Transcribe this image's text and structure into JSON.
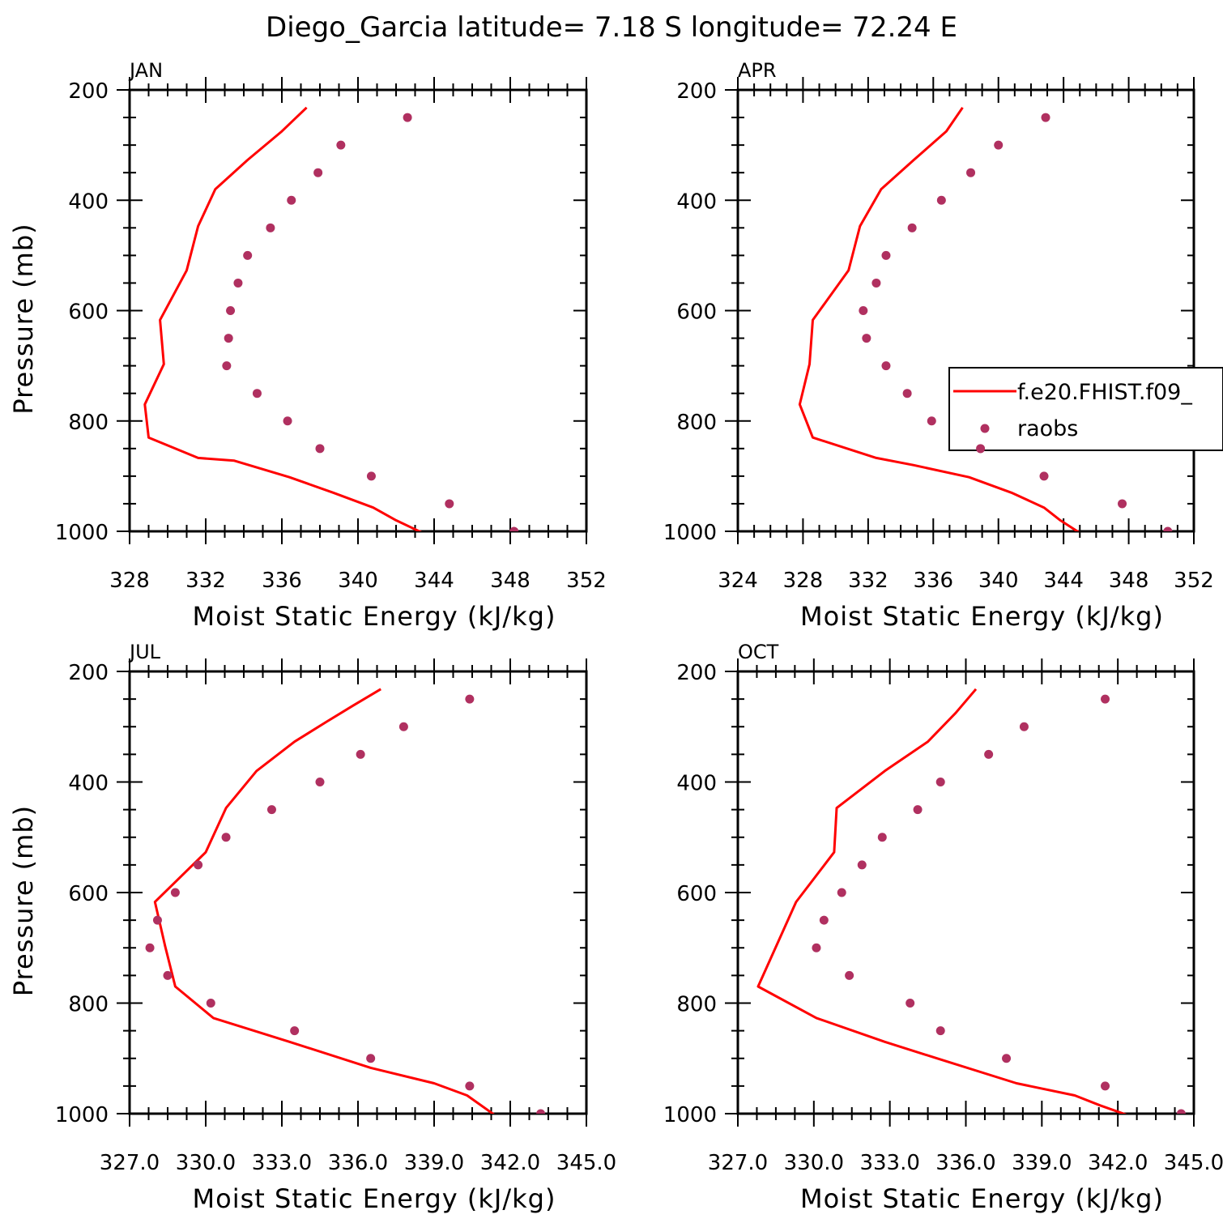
{
  "figure": {
    "title": "Diego_Garcia  latitude= 7.18 S longitude= 72.24 E"
  },
  "colors": {
    "model_line": "#ff0000",
    "obs_marker": "#b03060",
    "axis": "#000000"
  },
  "legend": {
    "placement": "right-middle of APR panel",
    "entries": [
      {
        "label": "f.e20.FHIST.f09_",
        "style": "line"
      },
      {
        "label": "raobs",
        "style": "marker"
      }
    ]
  },
  "chart_data": [
    {
      "panel": "JAN",
      "type": "line+scatter",
      "xlabel": "Moist Static Energy (kJ/kg)",
      "ylabel": "Pressure (mb)",
      "xlim": [
        328,
        352
      ],
      "x_ticks": [
        328,
        332,
        336,
        340,
        344,
        348,
        352
      ],
      "x_tick_labels": [
        "328",
        "332",
        "336",
        "340",
        "344",
        "348",
        "352"
      ],
      "ylim": [
        200,
        1000
      ],
      "y_ticks": [
        200,
        400,
        600,
        800,
        1000
      ],
      "y_tick_labels": [
        "200",
        "400",
        "600",
        "800",
        "1000"
      ],
      "y_inverted": true,
      "grid": false,
      "series": [
        {
          "name": "f.e20.FHIST.f09_",
          "style": "line",
          "x": [
            343.4,
            342.0,
            340.8,
            338.7,
            336.4,
            333.5,
            331.6,
            329.0,
            328.8,
            329.8,
            329.6,
            331.0,
            331.6,
            332.5,
            334.2,
            336.0,
            337.3
          ],
          "y": [
            1003,
            980,
            957,
            930,
            902,
            872,
            867,
            830,
            770,
            697,
            617,
            527,
            447,
            380,
            327,
            275,
            232
          ]
        },
        {
          "name": "raobs",
          "style": "marker",
          "x": [
            348.2,
            344.8,
            340.7,
            338.0,
            336.3,
            334.7,
            333.1,
            333.2,
            333.3,
            333.7,
            334.2,
            335.4,
            336.5,
            337.9,
            339.1,
            342.6
          ],
          "y": [
            1000,
            950,
            900,
            850,
            800,
            750,
            700,
            650,
            600,
            550,
            500,
            450,
            400,
            350,
            300,
            250
          ]
        }
      ]
    },
    {
      "panel": "APR",
      "type": "line+scatter",
      "xlabel": "Moist Static Energy (kJ/kg)",
      "ylabel": "",
      "xlim": [
        324,
        352
      ],
      "x_ticks": [
        324,
        328,
        332,
        336,
        340,
        344,
        348,
        352
      ],
      "x_tick_labels": [
        "324",
        "328",
        "332",
        "336",
        "340",
        "344",
        "348",
        "352"
      ],
      "ylim": [
        200,
        1000
      ],
      "y_ticks": [
        200,
        400,
        600,
        800,
        1000
      ],
      "y_tick_labels": [
        "200",
        "400",
        "600",
        "800",
        "1000"
      ],
      "y_inverted": true,
      "grid": false,
      "series": [
        {
          "name": "f.e20.FHIST.f09_",
          "style": "line",
          "x": [
            345.0,
            343.8,
            342.8,
            340.8,
            338.2,
            334.8,
            332.5,
            328.6,
            327.8,
            328.4,
            328.6,
            330.8,
            331.5,
            332.8,
            334.8,
            336.8,
            337.8
          ],
          "y": [
            1003,
            980,
            957,
            930,
            902,
            880,
            867,
            830,
            770,
            697,
            617,
            527,
            447,
            380,
            327,
            275,
            232
          ]
        },
        {
          "name": "raobs",
          "style": "marker",
          "x": [
            350.4,
            347.6,
            342.8,
            338.9,
            335.9,
            334.4,
            333.1,
            331.9,
            331.7,
            332.5,
            333.1,
            334.7,
            336.5,
            338.3,
            340.0,
            342.9
          ],
          "y": [
            1000,
            950,
            900,
            850,
            800,
            750,
            700,
            650,
            600,
            550,
            500,
            450,
            400,
            350,
            300,
            250
          ]
        }
      ]
    },
    {
      "panel": "JUL",
      "type": "line+scatter",
      "xlabel": "Moist Static Energy (kJ/kg)",
      "ylabel": "Pressure (mb)",
      "xlim": [
        327.0,
        345.0
      ],
      "x_ticks": [
        327.0,
        330.0,
        333.0,
        336.0,
        339.0,
        342.0,
        345.0
      ],
      "x_tick_labels": [
        "327.0",
        "330.0",
        "333.0",
        "336.0",
        "339.0",
        "342.0",
        "345.0"
      ],
      "ylim": [
        200,
        1000
      ],
      "y_ticks": [
        200,
        400,
        600,
        800,
        1000
      ],
      "y_tick_labels": [
        "200",
        "400",
        "600",
        "800",
        "1000"
      ],
      "y_inverted": true,
      "grid": false,
      "series": [
        {
          "name": "f.e20.FHIST.f09_",
          "style": "line",
          "x": [
            341.4,
            340.3,
            339.0,
            336.5,
            333.3,
            330.3,
            328.8,
            328.4,
            328.0,
            330.0,
            330.8,
            332.0,
            333.5,
            334.8,
            335.8,
            336.9
          ],
          "y": [
            1003,
            967,
            945,
            917,
            870,
            827,
            770,
            697,
            617,
            527,
            447,
            380,
            327,
            290,
            262,
            232
          ]
        },
        {
          "name": "raobs",
          "style": "marker",
          "x": [
            343.2,
            340.4,
            336.5,
            333.5,
            330.2,
            328.5,
            327.8,
            328.1,
            328.8,
            329.7,
            330.8,
            332.6,
            334.5,
            336.1,
            337.8,
            340.4
          ],
          "y": [
            1000,
            950,
            900,
            850,
            800,
            750,
            700,
            650,
            600,
            550,
            500,
            450,
            400,
            350,
            300,
            250
          ]
        }
      ]
    },
    {
      "panel": "OCT",
      "type": "line+scatter",
      "xlabel": "Moist Static Energy (kJ/kg)",
      "ylabel": "",
      "xlim": [
        327.0,
        345.0
      ],
      "x_ticks": [
        327.0,
        330.0,
        333.0,
        336.0,
        339.0,
        342.0,
        345.0
      ],
      "x_tick_labels": [
        "327.0",
        "330.0",
        "333.0",
        "336.0",
        "339.0",
        "342.0",
        "345.0"
      ],
      "ylim": [
        200,
        1000
      ],
      "y_ticks": [
        200,
        400,
        600,
        800,
        1000
      ],
      "y_tick_labels": [
        "200",
        "400",
        "600",
        "800",
        "1000"
      ],
      "y_inverted": true,
      "grid": false,
      "series": [
        {
          "name": "f.e20.FHIST.f09_",
          "style": "line",
          "x": [
            342.4,
            341.3,
            340.3,
            338.0,
            335.0,
            332.8,
            330.1,
            327.8,
            329.3,
            330.8,
            330.9,
            332.8,
            334.5,
            335.6,
            336.4
          ],
          "y": [
            1003,
            985,
            967,
            945,
            902,
            870,
            827,
            770,
            617,
            527,
            447,
            380,
            327,
            275,
            232
          ]
        },
        {
          "name": "raobs",
          "style": "marker",
          "x": [
            344.5,
            341.5,
            337.6,
            335.0,
            333.8,
            331.4,
            330.1,
            330.4,
            331.1,
            331.9,
            332.7,
            334.1,
            335.0,
            336.9,
            338.3,
            341.5
          ],
          "y": [
            1000,
            950,
            900,
            850,
            800,
            750,
            700,
            650,
            600,
            550,
            500,
            450,
            400,
            350,
            300,
            250
          ]
        }
      ]
    }
  ]
}
